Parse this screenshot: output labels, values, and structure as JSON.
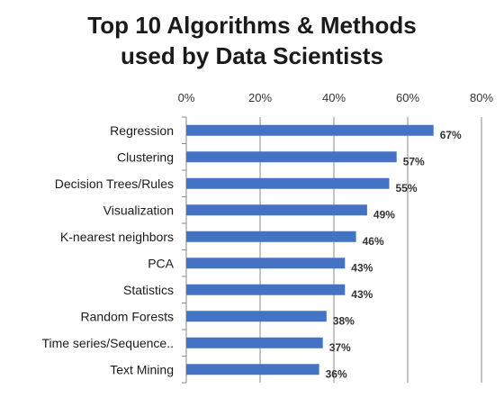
{
  "chart_data": {
    "type": "bar",
    "orientation": "horizontal",
    "title_line1": "Top 10 Algorithms & Methods",
    "title_line2": "used by Data Scientists",
    "categories": [
      "Regression",
      "Clustering",
      "Decision Trees/Rules",
      "Visualization",
      "K-nearest neighbors",
      "PCA",
      "Statistics",
      "Random Forests",
      "Time series/Sequence..",
      "Text Mining"
    ],
    "values": [
      67,
      57,
      55,
      49,
      46,
      43,
      43,
      38,
      37,
      36
    ],
    "value_labels": [
      "67%",
      "57%",
      "55%",
      "49%",
      "46%",
      "43%",
      "43%",
      "38%",
      "37%",
      "36%"
    ],
    "xlim": [
      0,
      80
    ],
    "xticks": [
      0,
      20,
      40,
      60,
      80
    ],
    "xtick_labels": [
      "0%",
      "20%",
      "40%",
      "60%",
      "80%"
    ],
    "x_axis_position": "top",
    "grid": true,
    "legend": "none",
    "bar_color": "#4472c4"
  }
}
